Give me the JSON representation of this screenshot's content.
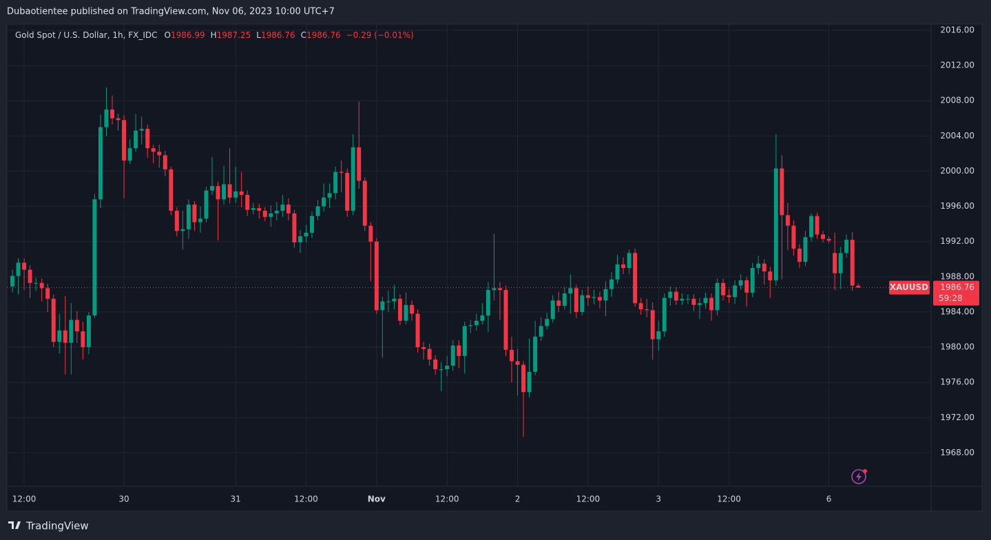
{
  "header": {
    "published": "Dubaotientee published on TradingView.com, Nov 06, 2023 10:00 UTC+7"
  },
  "footer": {
    "brand": "TradingView"
  },
  "chart_data": {
    "type": "candlestick",
    "title": "Gold Spot / U.S. Dollar, 1h, FX_IDC",
    "ohlc_labels": [
      "O",
      "H",
      "L",
      "C"
    ],
    "change": "−0.29 (−0.01%)",
    "symbol": "XAUUSD",
    "countdown": "59:28",
    "up_color": "#089981",
    "down_color": "#f23645",
    "grid": true,
    "ylim": [
      1964.2,
      2016.7
    ],
    "yticks": [
      {
        "value": 2016,
        "label": "2016.00"
      },
      {
        "value": 2012,
        "label": "2012.00"
      },
      {
        "value": 2008,
        "label": "2008.00"
      },
      {
        "value": 2004,
        "label": "2004.00"
      },
      {
        "value": 2000,
        "label": "2000.00"
      },
      {
        "value": 1996,
        "label": "1996.00"
      },
      {
        "value": 1992,
        "label": "1992.00"
      },
      {
        "value": 1988,
        "label": "1988.00"
      },
      {
        "value": 1984,
        "label": "1984.00"
      },
      {
        "value": 1980,
        "label": "1980.00"
      },
      {
        "value": 1976,
        "label": "1976.00"
      },
      {
        "value": 1972,
        "label": "1972.00"
      },
      {
        "value": 1968,
        "label": "1968.00"
      }
    ],
    "xlim": [
      -0.94,
      156.4
    ],
    "xticks": [
      {
        "value": 2,
        "label": "12:00"
      },
      {
        "value": 19,
        "label": "30"
      },
      {
        "value": 38,
        "label": "31"
      },
      {
        "value": 50,
        "label": "12:00"
      },
      {
        "value": 62,
        "label": "Nov"
      },
      {
        "value": 74,
        "label": "12:00"
      },
      {
        "value": 86,
        "label": "2"
      },
      {
        "value": 98,
        "label": "12:00"
      },
      {
        "value": 110,
        "label": "3"
      },
      {
        "value": 122,
        "label": "12:00"
      },
      {
        "value": 139,
        "label": "6"
      }
    ],
    "open": [
      1986.9,
      1988.1,
      1989.6,
      1988.8,
      1987.3,
      1987.3,
      1986.7,
      1985.5,
      1980.6,
      1981.9,
      1980.5,
      1983.1,
      1981.8,
      1980.0,
      1983.6,
      1996.8,
      2005.0,
      2007.0,
      2006.0,
      2005.8,
      2001.2,
      2002.6,
      2004.6,
      2004.8,
      2002.6,
      2002.2,
      2001.8,
      2000.2,
      1995.5,
      1993.2,
      1993.4,
      1996.2,
      1994.2,
      1994.6,
      1997.8,
      1998.3,
      1996.8,
      1998.5,
      1997.0,
      1997.7,
      1997.3,
      1995.6,
      1995.8,
      1995.5,
      1994.8,
      1995.2,
      1995.5,
      1996.2,
      1995.2,
      1991.9,
      1992.6,
      1993.0,
      1994.9,
      1996.0,
      1997.0,
      1997.5,
      1999.9,
      1999.8,
      1995.5,
      2002.7,
      1998.9,
      1993.8,
      1992.0,
      1984.2,
      1985.2,
      1985.2,
      1985.5,
      1983.0,
      1984.8,
      1983.8,
      1980.0,
      1979.8,
      1978.6,
      1977.5,
      1977.5,
      1977.9,
      1980.2,
      1979.0,
      1982.4,
      1982.5,
      1983.0,
      1983.6,
      1986.5,
      1986.7,
      1986.5,
      1979.7,
      1978.4,
      1978.0,
      1974.9,
      1977.2,
      1981.2,
      1982.4,
      1983.2,
      1985.3,
      1984.7,
      1986.1,
      1986.7,
      1984.0,
      1985.9,
      1985.6,
      1985.7,
      1985.3,
      1986.6,
      1987.7,
      1989.4,
      1989.0,
      1990.7,
      1985.0,
      1984.3,
      1984.2,
      1980.9,
      1981.8,
      1985.6,
      1986.3,
      1985.3,
      1985.5,
      1985.5,
      1984.8,
      1985.0,
      1985.6,
      1984.2,
      1987.3,
      1985.9,
      1985.7,
      1987.0,
      1987.6,
      1986.2,
      1989.0,
      1989.5,
      1988.6,
      1987.6,
      2000.3,
      1995.0,
      1993.8,
      1991.2,
      1989.7,
      1992.5,
      1994.9,
      1992.8,
      1992.3,
      1990.7,
      1988.4,
      1990.7,
      1992.2,
      1986.99
    ],
    "high": [
      1988.8,
      1990.1,
      1990.1,
      1989.3,
      1987.9,
      1987.8,
      1987.2,
      1986.0,
      1983.8,
      1985.8,
      1985.0,
      1984.1,
      1982.9,
      1984.0,
      1997.4,
      2006.4,
      2009.5,
      2008.6,
      2006.5,
      2006.4,
      2003.6,
      2006.5,
      2006.2,
      2005.3,
      2003.0,
      2003.0,
      2002.3,
      2000.5,
      1995.9,
      1995.5,
      1996.8,
      1996.6,
      1996.0,
      1998.2,
      2001.6,
      1998.8,
      2000.6,
      2002.6,
      2000.5,
      1999.9,
      1997.8,
      1996.4,
      1996.3,
      1995.9,
      1996.1,
      1996.5,
      1997.3,
      1996.9,
      1995.6,
      1993.3,
      1993.9,
      1995.4,
      1996.7,
      1998.6,
      1998.6,
      2000.5,
      2001.2,
      2000.3,
      2004.2,
      2007.9,
      1999.3,
      1994.2,
      1992.4,
      1985.7,
      1986.4,
      1987.1,
      1986.0,
      1986.2,
      1985.3,
      1984.3,
      1980.6,
      1980.4,
      1979.1,
      1978.3,
      1979.0,
      1980.8,
      1980.8,
      1982.9,
      1983.1,
      1983.8,
      1985.0,
      1987.4,
      1992.9,
      1987.4,
      1987.0,
      1981.2,
      1979.8,
      1978.4,
      1981.0,
      1983.0,
      1983.4,
      1983.9,
      1985.9,
      1986.3,
      1986.8,
      1988.3,
      1987.1,
      1986.5,
      1986.9,
      1986.5,
      1986.3,
      1987.5,
      1988.5,
      1990.5,
      1990.2,
      1991.1,
      1991.2,
      1985.6,
      1985.5,
      1985.1,
      1983.0,
      1986.1,
      1986.9,
      1986.8,
      1986.1,
      1986.0,
      1986.0,
      1985.6,
      1986.2,
      1986.1,
      1987.8,
      1987.8,
      1986.6,
      1987.6,
      1988.3,
      1988.0,
      1989.6,
      1990.4,
      1990.0,
      1989.1,
      2004.2,
      2001.8,
      1996.4,
      1994.4,
      1991.7,
      1993.2,
      1995.2,
      1995.3,
      1993.2,
      1992.6,
      1993.0,
      1991.4,
      1992.8,
      1993.1,
      1987.25
    ],
    "low": [
      1986.2,
      1986.0,
      1986.5,
      1985.6,
      1986.4,
      1985.2,
      1984.0,
      1980.0,
      1979.3,
      1976.9,
      1976.9,
      1980.5,
      1978.6,
      1979.2,
      1983.3,
      1995.8,
      2004.0,
      2005.3,
      2004.6,
      1996.9,
      2000.8,
      2002.2,
      2003.0,
      2001.5,
      2000.9,
      2000.4,
      1999.4,
      1995.0,
      1992.6,
      1991.1,
      1992.3,
      1993.2,
      1993.0,
      1994.2,
      1997.3,
      1992.1,
      1996.2,
      1996.3,
      1996.4,
      1995.9,
      1994.9,
      1995.1,
      1994.6,
      1994.3,
      1993.7,
      1994.4,
      1994.8,
      1994.4,
      1991.3,
      1990.7,
      1991.9,
      1992.4,
      1994.4,
      1995.4,
      1995.8,
      1996.8,
      1997.6,
      1994.8,
      1995.0,
      1998.0,
      1993.2,
      1987.5,
      1983.8,
      1978.8,
      1984.0,
      1984.3,
      1982.5,
      1982.6,
      1983.0,
      1979.4,
      1978.6,
      1977.9,
      1976.9,
      1975.0,
      1976.7,
      1977.3,
      1977.6,
      1977.0,
      1981.6,
      1981.9,
      1982.6,
      1981.7,
      1985.3,
      1983.1,
      1979.0,
      1976.0,
      1974.5,
      1969.8,
      1974.3,
      1976.8,
      1980.7,
      1982.0,
      1982.8,
      1984.0,
      1984.3,
      1983.8,
      1983.3,
      1983.6,
      1984.7,
      1984.9,
      1984.4,
      1983.5,
      1985.7,
      1987.2,
      1988.3,
      1988.3,
      1984.6,
      1983.7,
      1983.4,
      1978.6,
      1979.6,
      1981.2,
      1984.7,
      1984.8,
      1984.8,
      1984.9,
      1984.1,
      1983.2,
      1984.4,
      1983.0,
      1983.6,
      1985.3,
      1985.0,
      1984.9,
      1986.5,
      1984.6,
      1985.7,
      1988.3,
      1987.1,
      1985.6,
      1987.0,
      1987.7,
      1991.0,
      1990.4,
      1989.0,
      1989.2,
      1992.0,
      1992.3,
      1991.9,
      1991.8,
      1986.5,
      1986.6,
      1990.2,
      1986.4,
      1986.76
    ],
    "close": [
      1988.1,
      1989.6,
      1988.8,
      1987.3,
      1987.3,
      1986.7,
      1985.5,
      1980.6,
      1981.9,
      1980.5,
      1983.1,
      1981.8,
      1980.0,
      1983.6,
      1996.8,
      2005.0,
      2007.0,
      2006.0,
      2005.8,
      2001.2,
      2002.6,
      2004.6,
      2004.8,
      2002.6,
      2002.2,
      2001.8,
      2000.2,
      1995.5,
      1993.2,
      1993.4,
      1996.2,
      1994.2,
      1994.6,
      1997.8,
      1998.3,
      1996.8,
      1998.5,
      1997.0,
      1997.7,
      1997.3,
      1995.6,
      1995.8,
      1995.5,
      1994.8,
      1995.2,
      1995.5,
      1996.2,
      1995.2,
      1991.9,
      1992.6,
      1993.0,
      1994.9,
      1996.0,
      1997.0,
      1997.5,
      1999.9,
      1999.8,
      1995.5,
      2002.7,
      1998.9,
      1993.8,
      1992.0,
      1984.2,
      1985.2,
      1985.2,
      1985.5,
      1983.0,
      1984.8,
      1983.8,
      1980.0,
      1979.8,
      1978.6,
      1977.5,
      1977.5,
      1977.9,
      1980.2,
      1979.0,
      1982.4,
      1982.5,
      1983.0,
      1983.6,
      1986.5,
      1986.7,
      1986.5,
      1979.7,
      1978.4,
      1978.0,
      1974.9,
      1977.2,
      1981.2,
      1982.4,
      1983.2,
      1985.3,
      1984.7,
      1986.1,
      1986.7,
      1984.0,
      1985.9,
      1985.6,
      1985.7,
      1985.3,
      1986.6,
      1987.7,
      1989.4,
      1989.0,
      1990.7,
      1985.0,
      1984.3,
      1984.2,
      1980.9,
      1981.8,
      1985.6,
      1986.3,
      1985.3,
      1985.5,
      1985.5,
      1984.8,
      1985.0,
      1985.6,
      1984.2,
      1987.3,
      1985.9,
      1985.7,
      1987.0,
      1987.6,
      1986.2,
      1989.0,
      1989.5,
      1988.6,
      1987.6,
      2000.3,
      1995.0,
      1993.8,
      1991.2,
      1989.7,
      1992.5,
      1994.9,
      1992.8,
      1992.3,
      1992.1,
      1988.4,
      1990.7,
      1992.2,
      1987.0,
      1986.76
    ]
  }
}
